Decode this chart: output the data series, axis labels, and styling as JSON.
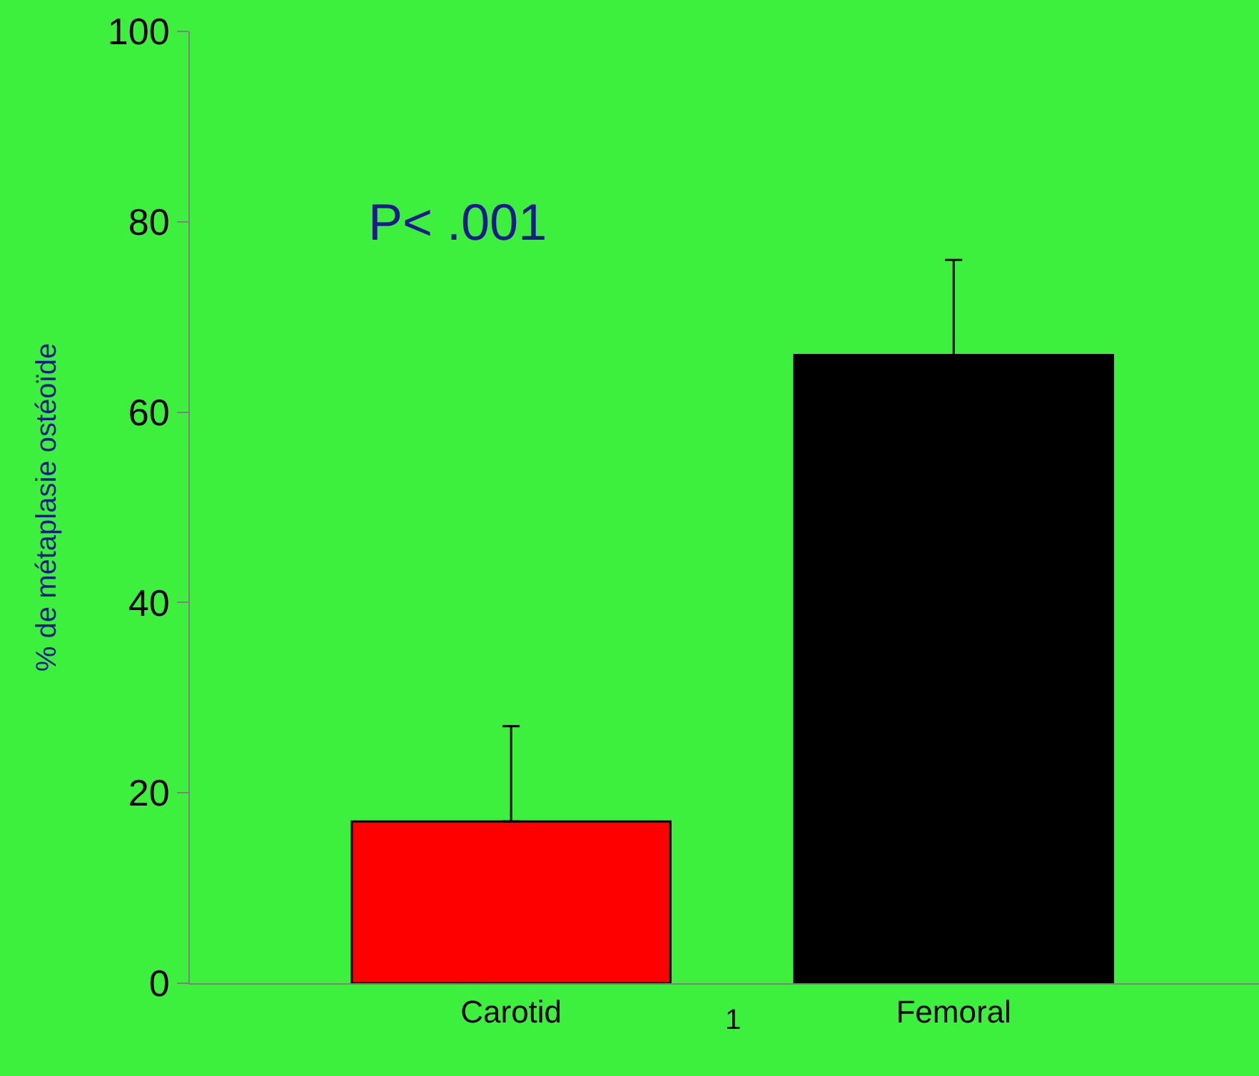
{
  "chart_data": {
    "type": "bar",
    "ylabel": "% de métaplasie ostéoïde",
    "categories": [
      "Carotid",
      "Femoral"
    ],
    "values": [
      17,
      66
    ],
    "colors": [
      "#ff0000",
      "#000000"
    ],
    "errors": [
      [
        17,
        27
      ],
      [
        66,
        76
      ]
    ],
    "ylim": [
      0,
      100
    ],
    "yticks": [
      0,
      20,
      40,
      60,
      80,
      100
    ],
    "grid": false,
    "legend": false,
    "annotations": [
      "P< .001",
      "1"
    ]
  }
}
